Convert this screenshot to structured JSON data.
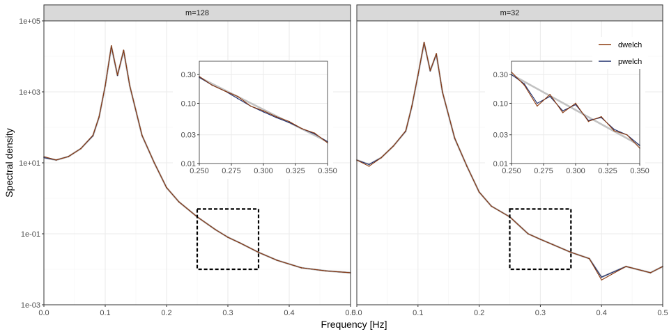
{
  "chart_data": {
    "type": "line",
    "xlabel": "Frequency [Hz]",
    "ylabel": "Spectral density",
    "x_ticks": [
      "0.0",
      "0.1",
      "0.2",
      "0.3",
      "0.4",
      "0.5"
    ],
    "y_ticks": [
      "1e-03",
      "1e-01",
      "1e+01",
      "1e+03",
      "1e+05"
    ],
    "xlim": [
      0,
      0.5
    ],
    "ylim_log10": [
      -3,
      5
    ],
    "y_scale": "log10",
    "grid": true,
    "legend": {
      "position": "top-right",
      "entries": [
        {
          "name": "dwelch",
          "color": "#8B3A0F"
        },
        {
          "name": "pwelch",
          "color": "#1F2E6B"
        }
      ]
    },
    "colors": {
      "dwelch": "#8B3A0F",
      "pwelch": "#1F2E6B",
      "smooth": "#C2C2C2",
      "strip_bg": "#D9D9D9",
      "panel_border": "#333333",
      "grid_major": "#EBEBEB"
    },
    "zoom_box": {
      "x": [
        0.25,
        0.35
      ],
      "y": [
        0.01,
        0.5
      ]
    },
    "inset": {
      "xlim": [
        0.25,
        0.35
      ],
      "ylim": [
        0.01,
        0.5
      ],
      "x_ticks": [
        "0.250",
        "0.275",
        "0.300",
        "0.325",
        "0.350"
      ],
      "y_ticks": [
        "0.01",
        "0.03",
        "0.10",
        "0.30"
      ]
    },
    "panels": [
      {
        "label": "m=128",
        "series": [
          {
            "name": "dwelch",
            "x": [
              0.0,
              0.02,
              0.04,
              0.06,
              0.08,
              0.09,
              0.1,
              0.11,
              0.12,
              0.13,
              0.14,
              0.16,
              0.18,
              0.2,
              0.22,
              0.25,
              0.28,
              0.3,
              0.32,
              0.35,
              0.38,
              0.42,
              0.46,
              0.5
            ],
            "y": [
              15,
              12,
              15,
              25,
              60,
              200,
              1500,
              20000,
              3000,
              15000,
              1500,
              60,
              10,
              2,
              0.8,
              0.3,
              0.13,
              0.08,
              0.055,
              0.03,
              0.018,
              0.011,
              0.009,
              0.008
            ]
          },
          {
            "name": "pwelch",
            "x": [
              0.0,
              0.02,
              0.04,
              0.06,
              0.08,
              0.09,
              0.1,
              0.11,
              0.12,
              0.13,
              0.14,
              0.16,
              0.18,
              0.2,
              0.22,
              0.25,
              0.28,
              0.3,
              0.32,
              0.35,
              0.38,
              0.42,
              0.46,
              0.5
            ],
            "y": [
              14,
              12,
              15,
              25,
              58,
              195,
              1480,
              19000,
              2900,
              14500,
              1480,
              59,
              10,
              2,
              0.8,
              0.3,
              0.13,
              0.08,
              0.055,
              0.03,
              0.018,
              0.011,
              0.009,
              0.008
            ]
          }
        ],
        "inset": {
          "dwelch": {
            "x": [
              0.25,
              0.26,
              0.27,
              0.28,
              0.29,
              0.3,
              0.31,
              0.32,
              0.33,
              0.34,
              0.35
            ],
            "y": [
              0.28,
              0.2,
              0.16,
              0.13,
              0.09,
              0.075,
              0.06,
              0.05,
              0.038,
              0.032,
              0.022
            ]
          },
          "pwelch": {
            "x": [
              0.25,
              0.26,
              0.27,
              0.28,
              0.29,
              0.3,
              0.31,
              0.32,
              0.33,
              0.34,
              0.35
            ],
            "y": [
              0.27,
              0.2,
              0.16,
              0.12,
              0.09,
              0.072,
              0.058,
              0.048,
              0.038,
              0.031,
              0.023
            ]
          }
        }
      },
      {
        "label": "m=32",
        "series": [
          {
            "name": "dwelch",
            "x": [
              0.0,
              0.02,
              0.04,
              0.06,
              0.08,
              0.09,
              0.1,
              0.11,
              0.12,
              0.13,
              0.14,
              0.16,
              0.18,
              0.2,
              0.22,
              0.25,
              0.28,
              0.3,
              0.32,
              0.35,
              0.38,
              0.4,
              0.44,
              0.48,
              0.5
            ],
            "y": [
              12,
              8,
              14,
              30,
              80,
              400,
              3000,
              25000,
              4000,
              12000,
              1000,
              50,
              8,
              1.5,
              0.6,
              0.3,
              0.1,
              0.07,
              0.05,
              0.03,
              0.02,
              0.005,
              0.012,
              0.008,
              0.012
            ]
          },
          {
            "name": "pwelch",
            "x": [
              0.0,
              0.02,
              0.04,
              0.06,
              0.08,
              0.09,
              0.1,
              0.11,
              0.12,
              0.13,
              0.14,
              0.16,
              0.18,
              0.2,
              0.22,
              0.25,
              0.28,
              0.3,
              0.32,
              0.35,
              0.38,
              0.4,
              0.44,
              0.48,
              0.5
            ],
            "y": [
              12,
              9,
              14,
              30,
              78,
              390,
              2900,
              24000,
              3900,
              11500,
              980,
              49,
              8,
              1.5,
              0.6,
              0.3,
              0.1,
              0.07,
              0.05,
              0.03,
              0.02,
              0.006,
              0.012,
              0.008,
              0.012
            ]
          }
        ],
        "inset": {
          "dwelch": {
            "x": [
              0.25,
              0.26,
              0.27,
              0.28,
              0.29,
              0.3,
              0.31,
              0.32,
              0.33,
              0.34,
              0.35
            ],
            "y": [
              0.33,
              0.2,
              0.09,
              0.14,
              0.07,
              0.1,
              0.05,
              0.06,
              0.035,
              0.03,
              0.018
            ]
          },
          "pwelch": {
            "x": [
              0.25,
              0.26,
              0.27,
              0.28,
              0.29,
              0.3,
              0.31,
              0.32,
              0.33,
              0.34,
              0.35
            ],
            "y": [
              0.3,
              0.21,
              0.1,
              0.13,
              0.075,
              0.095,
              0.052,
              0.058,
              0.037,
              0.03,
              0.02
            ]
          }
        }
      }
    ]
  }
}
